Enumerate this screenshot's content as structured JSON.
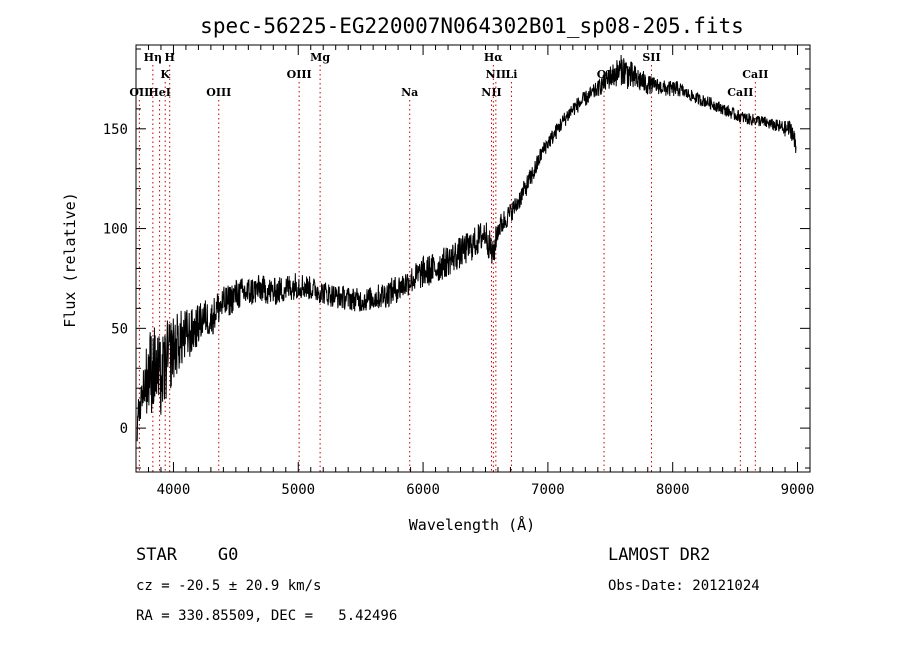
{
  "chart_data": {
    "type": "line",
    "title": "spec-56225-EG220007N064302B01_sp08-205.fits",
    "xlabel": "Wavelength (Å)",
    "ylabel": "Flux (relative)",
    "xlim": [
      3700,
      9100
    ],
    "ylim": [
      -22,
      192
    ],
    "xticks": [
      4000,
      5000,
      6000,
      7000,
      8000,
      9000
    ],
    "yticks": [
      0,
      50,
      100,
      150
    ],
    "grid": false,
    "line_color": "#000000",
    "marker_color": "#cc0000",
    "series": [
      {
        "x": [
          3710,
          3750,
          3800,
          3850,
          3900,
          3950,
          4000,
          4050,
          4100,
          4150,
          4200,
          4250,
          4300,
          4350,
          4400,
          4450,
          4500,
          4600,
          4700,
          4800,
          4900,
          5000,
          5100,
          5200,
          5300,
          5400,
          5500,
          5600,
          5700,
          5800,
          5900,
          6000,
          6100,
          6200,
          6300,
          6400,
          6500,
          6560,
          6600,
          6650,
          6700,
          6750,
          6800,
          6850,
          6900,
          6950,
          7000,
          7050,
          7100,
          7150,
          7200,
          7300,
          7400,
          7500,
          7550,
          7600,
          7650,
          7700,
          7750,
          7800,
          7850,
          7900,
          7950,
          8000,
          8050,
          8100,
          8200,
          8300,
          8400,
          8500,
          8600,
          8700,
          8800,
          8900,
          8950,
          8990
        ],
        "y": [
          2,
          18,
          28,
          30,
          24,
          34,
          40,
          44,
          46,
          48,
          52,
          56,
          54,
          60,
          62,
          64,
          67,
          68,
          70,
          68,
          70,
          72,
          70,
          68,
          66,
          65,
          64,
          65,
          67,
          70,
          74,
          78,
          80,
          84,
          88,
          92,
          98,
          86,
          100,
          104,
          108,
          112,
          118,
          124,
          130,
          138,
          143,
          147,
          152,
          156,
          160,
          165,
          170,
          176,
          178,
          180,
          177,
          175,
          174,
          172,
          172,
          171,
          170,
          170,
          170,
          168,
          165,
          163,
          160,
          157,
          155,
          154,
          152,
          150,
          150,
          140
        ],
        "noise": [
          9,
          9,
          22,
          22,
          20,
          20,
          17,
          15,
          14,
          12,
          10,
          9,
          9,
          9,
          9,
          8,
          8,
          8,
          7,
          7,
          7,
          7,
          6,
          6,
          6,
          6,
          6,
          6,
          7,
          7,
          7,
          8,
          8,
          8,
          8,
          8,
          8,
          8,
          6,
          6,
          5,
          5,
          5,
          5,
          5,
          4,
          4,
          4,
          4,
          4,
          4,
          4,
          4,
          6,
          7,
          8,
          8,
          7,
          6,
          5,
          4,
          4,
          4,
          4,
          4,
          3,
          3,
          3,
          3,
          3,
          3,
          3,
          3,
          4,
          5,
          6
        ]
      }
    ],
    "line_markers": [
      {
        "wavelength": 3727,
        "label": "OII",
        "row": 3
      },
      {
        "wavelength": 3835,
        "label": "Hη",
        "row": 1
      },
      {
        "wavelength": 3889,
        "label": "HeI",
        "row": 3
      },
      {
        "wavelength": 3934,
        "label": "K",
        "row": 2
      },
      {
        "wavelength": 3970,
        "label": "H",
        "row": 1
      },
      {
        "wavelength": 4363,
        "label": "OIII",
        "row": 3
      },
      {
        "wavelength": 5007,
        "label": "OIII",
        "row": 2
      },
      {
        "wavelength": 5175,
        "label": "Mg",
        "row": 1
      },
      {
        "wavelength": 5893,
        "label": "Na",
        "row": 3
      },
      {
        "wavelength": 6548,
        "label": "NII",
        "row": 3
      },
      {
        "wavelength": 6563,
        "label": "Hα",
        "row": 1
      },
      {
        "wavelength": 6583,
        "label": "NII",
        "row": 2
      },
      {
        "wavelength": 6708,
        "label": "Li",
        "row": 2
      },
      {
        "wavelength": 7450,
        "label": "OI",
        "row": 2
      },
      {
        "wavelength": 7830,
        "label": "SII",
        "row": 1
      },
      {
        "wavelength": 8542,
        "label": "CaII",
        "row": 3
      },
      {
        "wavelength": 8662,
        "label": "CaII",
        "row": 2
      }
    ]
  },
  "info": {
    "class_line": "STAR    G0",
    "survey": "LAMOST DR2",
    "cz_line": "cz = -20.5 ± 20.9 km/s",
    "obs_date": "Obs-Date: 20121024",
    "coords": "RA = 330.85509, DEC =   5.42496"
  }
}
